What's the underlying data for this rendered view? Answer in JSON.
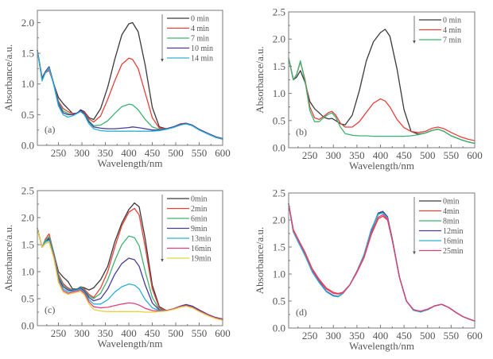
{
  "figure": {
    "description": "UV-Vis absorption spectra at different reaction times, four panels (a)-(d)"
  },
  "chart_data": [
    {
      "type": "line",
      "panel_label": "(a)",
      "xlabel": "Wavelength/nm",
      "ylabel": "Absorbance/a.u.",
      "xlim": [
        205,
        600
      ],
      "ylim": [
        0,
        2.2
      ],
      "xticks": [
        250,
        300,
        350,
        400,
        450,
        500,
        550,
        600
      ],
      "yticks": [
        0.0,
        0.5,
        1.0,
        1.5,
        2.0
      ],
      "ytick_labels": [
        "0.0",
        "0.5",
        "1.0",
        "1.5",
        "2.0"
      ],
      "legend_position": "top-right",
      "legend_arrow": "down",
      "x": [
        205,
        215,
        222,
        230,
        240,
        250,
        260,
        270,
        280,
        290,
        297,
        305,
        315,
        325,
        340,
        355,
        370,
        385,
        400,
        408,
        420,
        435,
        450,
        465,
        480,
        495,
        510,
        522,
        535,
        550,
        570,
        585,
        600
      ],
      "series": [
        {
          "name": "0 min",
          "color": "#3a3a3a",
          "values": [
            1.55,
            1.1,
            1.2,
            1.28,
            1.0,
            0.78,
            0.68,
            0.6,
            0.52,
            0.52,
            0.58,
            0.55,
            0.45,
            0.42,
            0.6,
            0.95,
            1.4,
            1.8,
            1.98,
            2.0,
            1.85,
            1.3,
            0.62,
            0.3,
            0.27,
            0.3,
            0.35,
            0.36,
            0.33,
            0.26,
            0.19,
            0.14,
            0.11
          ]
        },
        {
          "name": "4 min",
          "color": "#e8403a",
          "values": [
            1.55,
            1.1,
            1.18,
            1.22,
            1.0,
            0.72,
            0.6,
            0.55,
            0.52,
            0.52,
            0.56,
            0.54,
            0.43,
            0.38,
            0.48,
            0.75,
            1.05,
            1.32,
            1.42,
            1.4,
            1.25,
            0.85,
            0.45,
            0.28,
            0.27,
            0.3,
            0.35,
            0.36,
            0.33,
            0.26,
            0.19,
            0.14,
            0.11
          ]
        },
        {
          "name": "7 min",
          "color": "#3cb371",
          "values": [
            1.55,
            1.08,
            1.18,
            1.25,
            1.0,
            0.7,
            0.56,
            0.52,
            0.5,
            0.52,
            0.56,
            0.52,
            0.4,
            0.32,
            0.33,
            0.4,
            0.52,
            0.63,
            0.67,
            0.66,
            0.58,
            0.42,
            0.3,
            0.26,
            0.27,
            0.3,
            0.34,
            0.35,
            0.32,
            0.25,
            0.18,
            0.13,
            0.1
          ]
        },
        {
          "name": "10 min",
          "color": "#4b3a9c",
          "values": [
            1.55,
            1.08,
            1.2,
            1.28,
            1.0,
            0.68,
            0.53,
            0.5,
            0.5,
            0.53,
            0.57,
            0.52,
            0.38,
            0.3,
            0.28,
            0.27,
            0.27,
            0.28,
            0.29,
            0.3,
            0.29,
            0.27,
            0.25,
            0.25,
            0.27,
            0.3,
            0.34,
            0.36,
            0.33,
            0.26,
            0.19,
            0.14,
            0.11
          ]
        },
        {
          "name": "14 min",
          "color": "#2ab0d8",
          "values": [
            1.55,
            1.05,
            1.18,
            1.26,
            0.98,
            0.64,
            0.5,
            0.46,
            0.48,
            0.52,
            0.55,
            0.5,
            0.35,
            0.27,
            0.24,
            0.23,
            0.23,
            0.23,
            0.23,
            0.23,
            0.23,
            0.23,
            0.23,
            0.24,
            0.26,
            0.29,
            0.33,
            0.35,
            0.32,
            0.25,
            0.18,
            0.13,
            0.1
          ]
        }
      ]
    },
    {
      "type": "line",
      "panel_label": "(b)",
      "xlabel": "Wavelength/nm",
      "ylabel": "Absorbance/a.u.",
      "xlim": [
        205,
        600
      ],
      "ylim": [
        0,
        2.5
      ],
      "xticks": [
        250,
        300,
        350,
        400,
        450,
        500,
        550,
        600
      ],
      "yticks": [
        0.0,
        0.5,
        1.0,
        1.5,
        2.0,
        2.5
      ],
      "ytick_labels": [
        "0.0",
        "0.5",
        "1.0",
        "1.5",
        "2.0",
        "2.5"
      ],
      "legend_position": "top-right",
      "legend_arrow": "down",
      "x": [
        205,
        215,
        222,
        230,
        240,
        250,
        260,
        270,
        280,
        290,
        297,
        305,
        315,
        325,
        340,
        355,
        370,
        385,
        400,
        410,
        420,
        435,
        450,
        465,
        480,
        495,
        510,
        522,
        535,
        550,
        570,
        585,
        600
      ],
      "series": [
        {
          "name": "0 min",
          "color": "#3a3a3a",
          "values": [
            1.65,
            1.25,
            1.3,
            1.42,
            1.2,
            0.85,
            0.72,
            0.64,
            0.56,
            0.53,
            0.54,
            0.5,
            0.44,
            0.42,
            0.6,
            1.05,
            1.6,
            1.95,
            2.12,
            2.18,
            2.05,
            1.45,
            0.7,
            0.3,
            0.25,
            0.27,
            0.32,
            0.34,
            0.3,
            0.22,
            0.15,
            0.11,
            0.08
          ]
        },
        {
          "name": "4 min",
          "color": "#e8403a",
          "values": [
            1.65,
            1.25,
            1.35,
            1.58,
            1.25,
            0.75,
            0.55,
            0.52,
            0.58,
            0.65,
            0.67,
            0.6,
            0.45,
            0.38,
            0.38,
            0.48,
            0.65,
            0.82,
            0.9,
            0.86,
            0.75,
            0.52,
            0.37,
            0.3,
            0.28,
            0.3,
            0.36,
            0.38,
            0.35,
            0.28,
            0.2,
            0.16,
            0.13
          ]
        },
        {
          "name": "7 min",
          "color": "#3cb371",
          "values": [
            1.65,
            1.25,
            1.35,
            1.6,
            1.22,
            0.68,
            0.48,
            0.48,
            0.56,
            0.62,
            0.64,
            0.56,
            0.38,
            0.26,
            0.23,
            0.22,
            0.22,
            0.21,
            0.21,
            0.21,
            0.21,
            0.21,
            0.21,
            0.22,
            0.24,
            0.27,
            0.32,
            0.34,
            0.3,
            0.22,
            0.15,
            0.11,
            0.08
          ]
        }
      ]
    },
    {
      "type": "line",
      "panel_label": "(c)",
      "xlabel": "Wavelength/nm",
      "ylabel": "Absorbance/a.u.",
      "xlim": [
        205,
        600
      ],
      "ylim": [
        0,
        2.5
      ],
      "xticks": [
        250,
        300,
        350,
        400,
        450,
        500,
        550,
        600
      ],
      "yticks": [
        0.0,
        0.5,
        1.0,
        1.5,
        2.0,
        2.5
      ],
      "ytick_labels": [
        "0.0",
        "0.5",
        "1.0",
        "1.5",
        "2.0",
        "2.5"
      ],
      "legend_position": "top-right",
      "legend_arrow": "down",
      "x": [
        205,
        215,
        222,
        230,
        240,
        250,
        260,
        270,
        280,
        290,
        297,
        305,
        315,
        325,
        340,
        355,
        370,
        385,
        400,
        412,
        422,
        435,
        450,
        465,
        480,
        495,
        510,
        522,
        535,
        550,
        570,
        585,
        600
      ],
      "series": [
        {
          "name": "0min",
          "color": "#3a3a3a",
          "values": [
            1.8,
            1.45,
            1.55,
            1.62,
            1.35,
            1.0,
            0.9,
            0.82,
            0.68,
            0.68,
            0.72,
            0.7,
            0.66,
            0.7,
            0.85,
            1.1,
            1.55,
            1.9,
            2.15,
            2.27,
            2.2,
            1.6,
            0.75,
            0.35,
            0.28,
            0.31,
            0.36,
            0.39,
            0.36,
            0.29,
            0.2,
            0.15,
            0.12
          ]
        },
        {
          "name": "2min",
          "color": "#e8403a",
          "values": [
            1.8,
            1.45,
            1.6,
            1.7,
            1.35,
            0.95,
            0.78,
            0.7,
            0.66,
            0.68,
            0.72,
            0.68,
            0.58,
            0.52,
            0.7,
            1.0,
            1.45,
            1.85,
            2.1,
            2.17,
            2.05,
            1.45,
            0.68,
            0.33,
            0.28,
            0.31,
            0.36,
            0.39,
            0.36,
            0.29,
            0.2,
            0.15,
            0.12
          ]
        },
        {
          "name": "6min",
          "color": "#3cb371",
          "values": [
            1.8,
            1.45,
            1.58,
            1.65,
            1.35,
            0.92,
            0.75,
            0.68,
            0.66,
            0.68,
            0.72,
            0.66,
            0.55,
            0.5,
            0.6,
            0.85,
            1.2,
            1.5,
            1.66,
            1.63,
            1.48,
            1.0,
            0.52,
            0.3,
            0.28,
            0.31,
            0.36,
            0.38,
            0.35,
            0.28,
            0.19,
            0.14,
            0.11
          ]
        },
        {
          "name": "9min",
          "color": "#4b3a9c",
          "values": [
            1.8,
            1.45,
            1.55,
            1.6,
            1.32,
            0.88,
            0.72,
            0.66,
            0.65,
            0.67,
            0.7,
            0.64,
            0.52,
            0.46,
            0.5,
            0.68,
            0.95,
            1.15,
            1.25,
            1.22,
            1.1,
            0.75,
            0.42,
            0.29,
            0.28,
            0.31,
            0.36,
            0.39,
            0.36,
            0.29,
            0.2,
            0.15,
            0.12
          ]
        },
        {
          "name": "13min",
          "color": "#2ab0d8",
          "values": [
            1.8,
            1.45,
            1.55,
            1.58,
            1.3,
            0.85,
            0.68,
            0.63,
            0.64,
            0.66,
            0.68,
            0.62,
            0.48,
            0.4,
            0.4,
            0.48,
            0.62,
            0.72,
            0.77,
            0.75,
            0.68,
            0.48,
            0.33,
            0.28,
            0.28,
            0.31,
            0.35,
            0.37,
            0.34,
            0.27,
            0.19,
            0.14,
            0.11
          ]
        },
        {
          "name": "16min",
          "color": "#e0407a",
          "values": [
            1.8,
            1.45,
            1.52,
            1.55,
            1.28,
            0.82,
            0.65,
            0.6,
            0.62,
            0.64,
            0.66,
            0.6,
            0.44,
            0.35,
            0.33,
            0.34,
            0.37,
            0.4,
            0.42,
            0.41,
            0.38,
            0.32,
            0.28,
            0.27,
            0.28,
            0.31,
            0.35,
            0.37,
            0.34,
            0.27,
            0.19,
            0.14,
            0.11
          ]
        },
        {
          "name": "19min",
          "color": "#e8d040",
          "values": [
            1.8,
            1.45,
            1.52,
            1.55,
            1.25,
            0.8,
            0.62,
            0.58,
            0.6,
            0.62,
            0.63,
            0.57,
            0.4,
            0.3,
            0.27,
            0.26,
            0.26,
            0.26,
            0.26,
            0.26,
            0.26,
            0.25,
            0.25,
            0.26,
            0.27,
            0.3,
            0.34,
            0.36,
            0.33,
            0.26,
            0.18,
            0.13,
            0.1
          ]
        }
      ]
    },
    {
      "type": "line",
      "panel_label": "(d)",
      "xlabel": "Wavelength/nm",
      "ylabel": "Absorbance/a.u.",
      "xlim": [
        205,
        600
      ],
      "ylim": [
        0,
        2.5
      ],
      "xticks": [
        250,
        300,
        350,
        400,
        450,
        500,
        550,
        600
      ],
      "yticks": [
        0.0,
        0.5,
        1.0,
        1.5,
        2.0,
        2.5
      ],
      "ytick_labels": [
        "0.0",
        "0.5",
        "1.0",
        "1.5",
        "2.0",
        "2.5"
      ],
      "legend_position": "top-right",
      "legend_arrow": "down",
      "x": [
        205,
        215,
        225,
        240,
        255,
        270,
        285,
        300,
        310,
        320,
        335,
        350,
        365,
        380,
        395,
        405,
        415,
        425,
        440,
        455,
        470,
        485,
        500,
        515,
        530,
        545,
        560,
        575,
        590,
        600
      ],
      "series": [
        {
          "name": "0min",
          "color": "#3a3a3a",
          "values": [
            2.3,
            1.8,
            1.62,
            1.35,
            1.05,
            0.85,
            0.68,
            0.6,
            0.58,
            0.64,
            0.8,
            1.05,
            1.35,
            1.8,
            2.12,
            2.15,
            2.05,
            1.65,
            0.95,
            0.5,
            0.33,
            0.3,
            0.34,
            0.41,
            0.44,
            0.38,
            0.29,
            0.21,
            0.16,
            0.13
          ]
        },
        {
          "name": "4min",
          "color": "#e8403a",
          "values": [
            2.3,
            1.82,
            1.65,
            1.4,
            1.1,
            0.9,
            0.74,
            0.66,
            0.64,
            0.66,
            0.8,
            1.03,
            1.3,
            1.72,
            2.02,
            2.07,
            2.0,
            1.62,
            0.95,
            0.5,
            0.34,
            0.31,
            0.35,
            0.41,
            0.44,
            0.38,
            0.29,
            0.21,
            0.16,
            0.13
          ]
        },
        {
          "name": "8min",
          "color": "#3cb371",
          "values": [
            2.3,
            1.78,
            1.6,
            1.34,
            1.04,
            0.84,
            0.68,
            0.6,
            0.59,
            0.64,
            0.8,
            1.05,
            1.35,
            1.8,
            2.1,
            2.14,
            2.05,
            1.65,
            0.95,
            0.5,
            0.33,
            0.3,
            0.34,
            0.41,
            0.44,
            0.38,
            0.29,
            0.21,
            0.16,
            0.13
          ]
        },
        {
          "name": "12min",
          "color": "#4b3a9c",
          "values": [
            2.3,
            1.79,
            1.61,
            1.35,
            1.05,
            0.85,
            0.68,
            0.6,
            0.58,
            0.64,
            0.8,
            1.05,
            1.35,
            1.8,
            2.13,
            2.16,
            2.06,
            1.65,
            0.95,
            0.5,
            0.33,
            0.3,
            0.34,
            0.41,
            0.44,
            0.38,
            0.29,
            0.21,
            0.16,
            0.13
          ]
        },
        {
          "name": "16min",
          "color": "#2ab0d8",
          "values": [
            2.3,
            1.78,
            1.6,
            1.34,
            1.04,
            0.84,
            0.67,
            0.59,
            0.58,
            0.64,
            0.8,
            1.05,
            1.36,
            1.82,
            2.11,
            2.13,
            2.04,
            1.64,
            0.95,
            0.5,
            0.33,
            0.3,
            0.34,
            0.41,
            0.44,
            0.38,
            0.29,
            0.21,
            0.16,
            0.13
          ]
        },
        {
          "name": "25min",
          "color": "#e0407a",
          "values": [
            2.3,
            1.8,
            1.64,
            1.38,
            1.08,
            0.88,
            0.72,
            0.64,
            0.63,
            0.65,
            0.8,
            1.04,
            1.32,
            1.75,
            2.05,
            2.1,
            2.02,
            1.63,
            0.95,
            0.5,
            0.34,
            0.31,
            0.35,
            0.41,
            0.44,
            0.38,
            0.29,
            0.21,
            0.16,
            0.13
          ]
        }
      ]
    }
  ]
}
